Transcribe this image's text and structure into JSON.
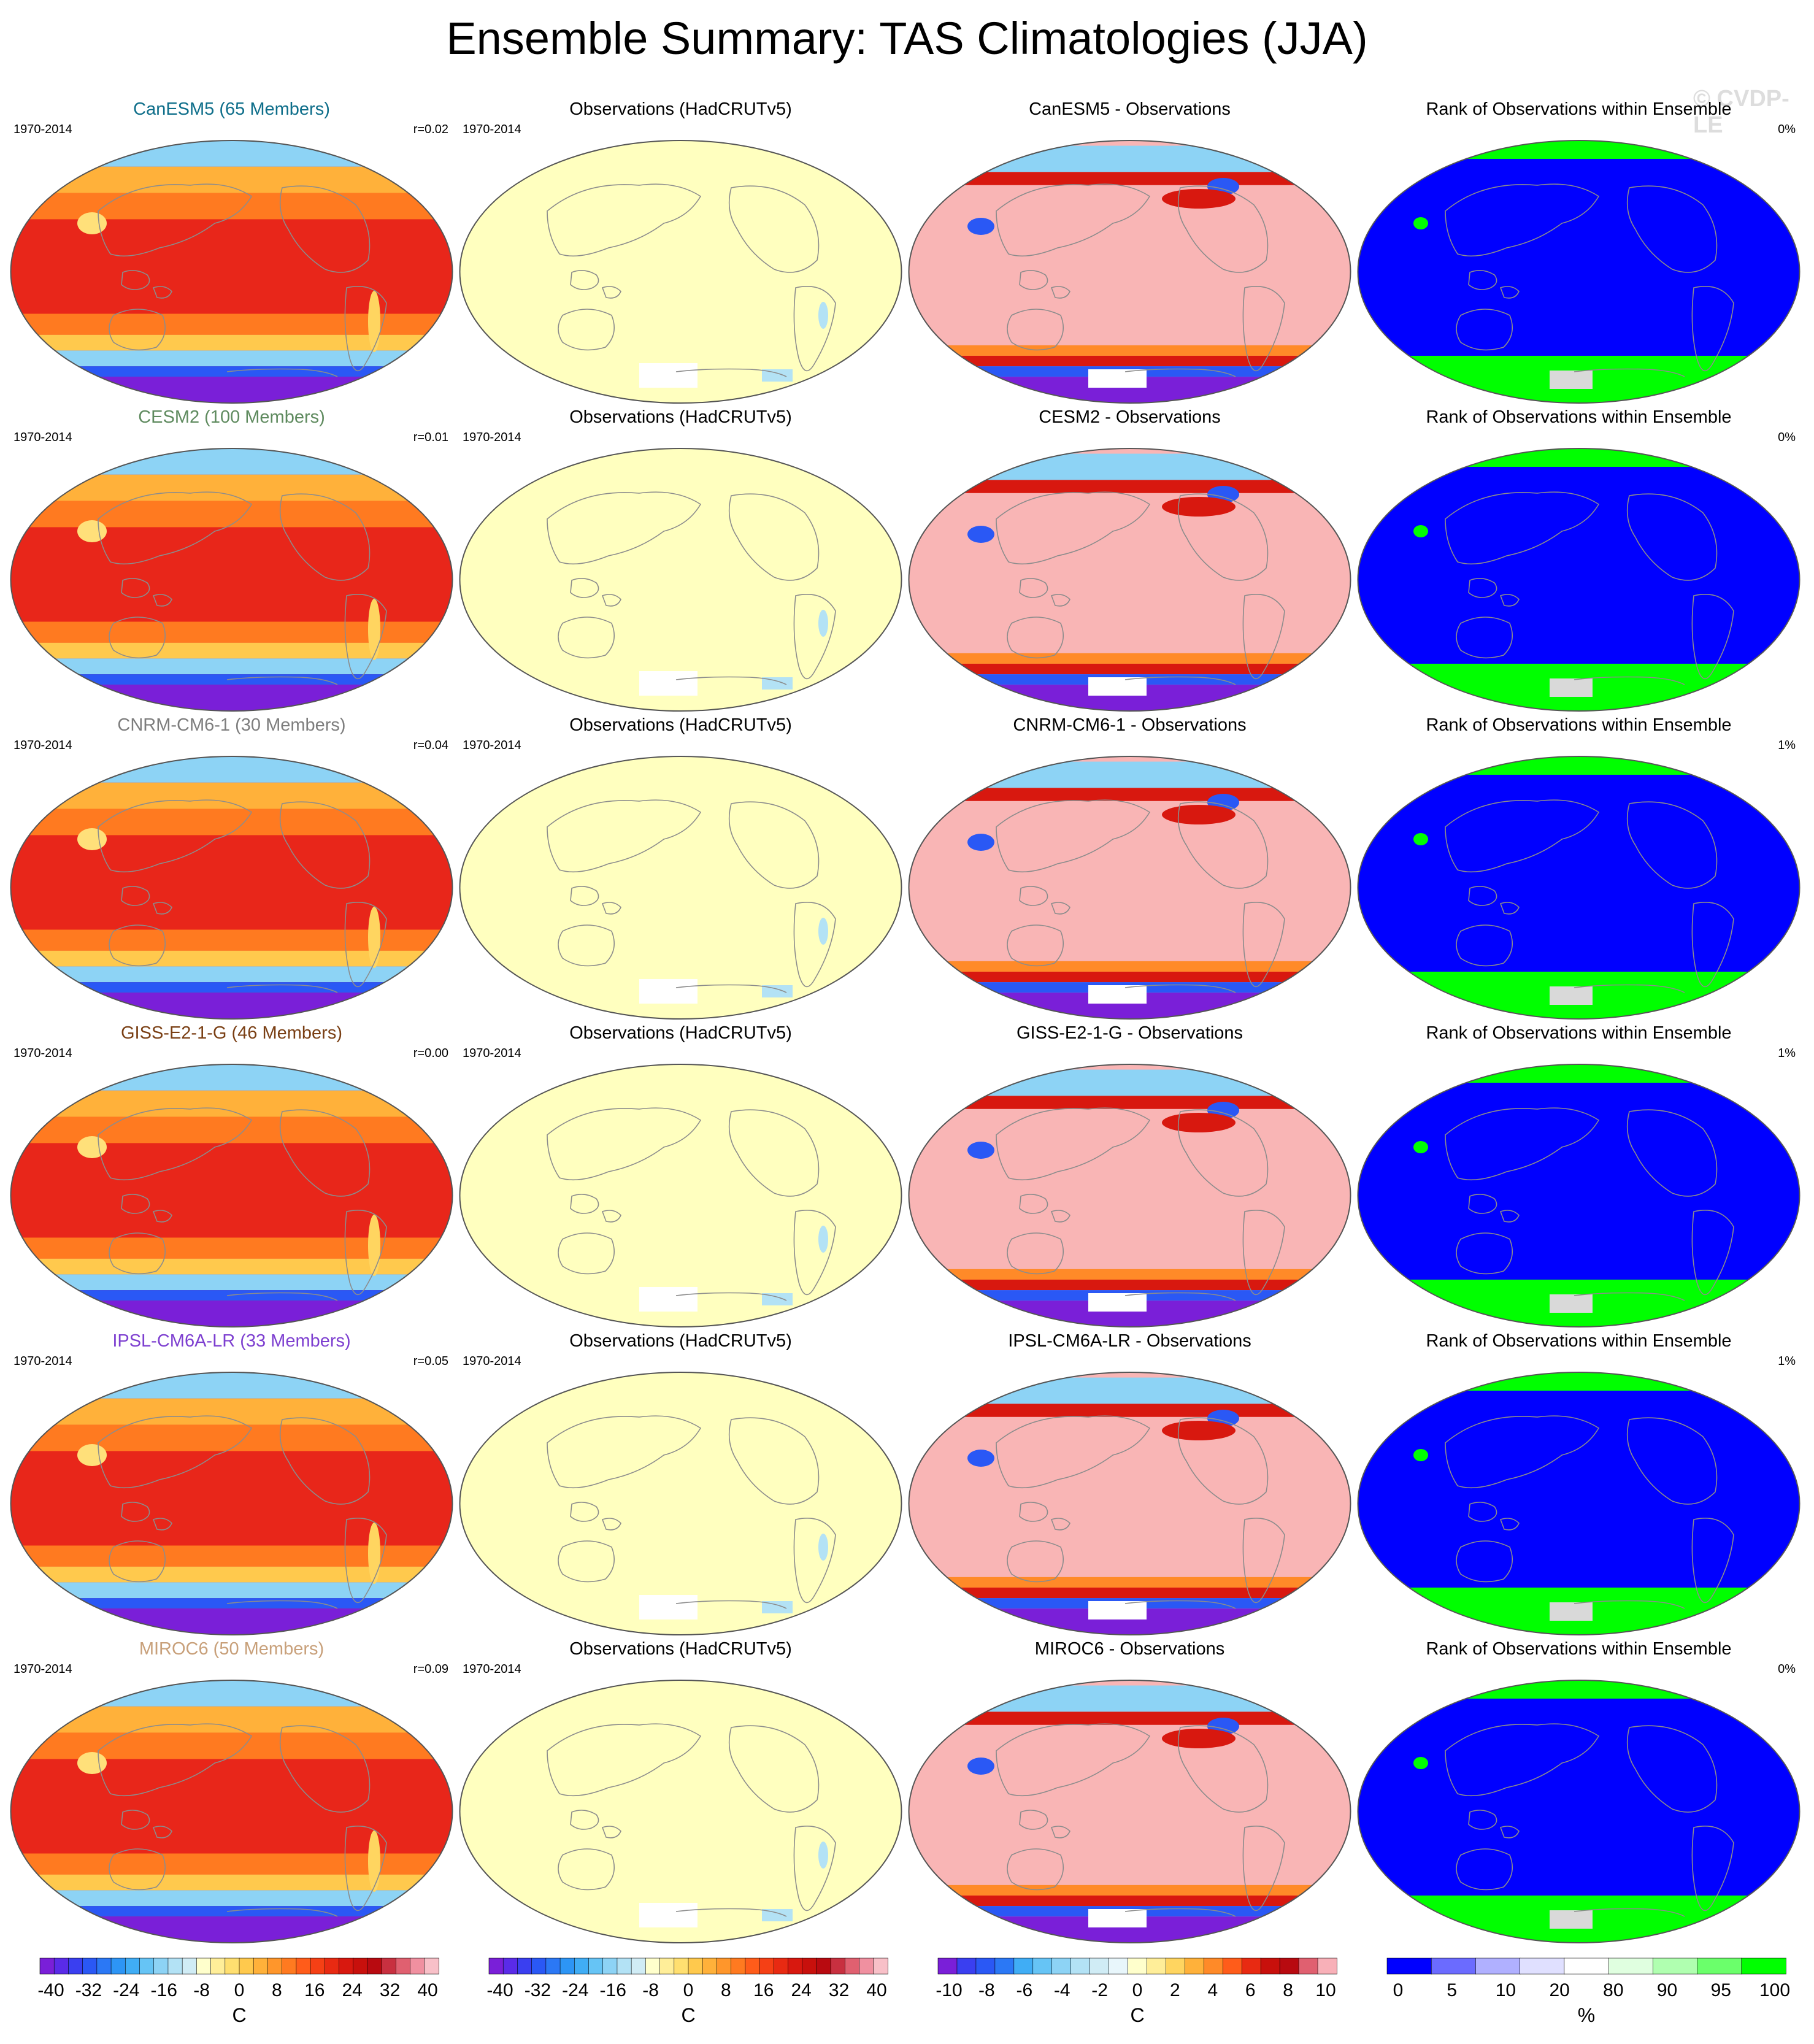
{
  "title": "Ensemble Summary: TAS Climatologies (JJA)",
  "watermark": "© CVDP-LE",
  "period": "1970-2014",
  "rows": [
    {
      "model_title": "CanESM5 (65 Members)",
      "model_color": "#0e6e8a",
      "r": "r=0.02",
      "obs_title": "Observations (HadCRUTv5)",
      "diff_title": "CanESM5 - Observations",
      "rank_title": "Rank of Observations within Ensemble",
      "rank_pct": "0%"
    },
    {
      "model_title": "CESM2 (100 Members)",
      "model_color": "#5e8a5e",
      "r": "r=0.01",
      "obs_title": "Observations (HadCRUTv5)",
      "diff_title": "CESM2 - Observations",
      "rank_title": "Rank of Observations within Ensemble",
      "rank_pct": "0%"
    },
    {
      "model_title": "CNRM-CM6-1 (30 Members)",
      "model_color": "#7d7d7d",
      "r": "r=0.04",
      "obs_title": "Observations (HadCRUTv5)",
      "diff_title": "CNRM-CM6-1 - Observations",
      "rank_title": "Rank of Observations within Ensemble",
      "rank_pct": "1%"
    },
    {
      "model_title": "GISS-E2-1-G (46 Members)",
      "model_color": "#7a3f14",
      "r": "r=0.00",
      "obs_title": "Observations (HadCRUTv5)",
      "diff_title": "GISS-E2-1-G - Observations",
      "rank_title": "Rank of Observations within Ensemble",
      "rank_pct": "1%"
    },
    {
      "model_title": "IPSL-CM6A-LR (33 Members)",
      "model_color": "#7d3fd0",
      "r": "r=0.05",
      "obs_title": "Observations (HadCRUTv5)",
      "diff_title": "IPSL-CM6A-LR - Observations",
      "rank_title": "Rank of Observations within Ensemble",
      "rank_pct": "1%"
    },
    {
      "model_title": "MIROC6 (50 Members)",
      "model_color": "#c8a07a",
      "r": "r=0.09",
      "obs_title": "Observations (HadCRUTv5)",
      "diff_title": "MIROC6 - Observations",
      "rank_title": "Rank of Observations within Ensemble",
      "rank_pct": "0%"
    }
  ],
  "colorbars": [
    {
      "id": "tas",
      "labels": [
        "-40",
        "-32",
        "-24",
        "-16",
        "-8",
        "0",
        "8",
        "16",
        "24",
        "32",
        "40"
      ],
      "unit": "C",
      "colors": [
        "#7a1fd8",
        "#5a2be8",
        "#3a3ff0",
        "#2a58f5",
        "#2b78f5",
        "#2d95f5",
        "#40adf5",
        "#66c4f5",
        "#8dd3f5",
        "#b3e2f5",
        "#d0ecf5",
        "#ffffcc",
        "#ffee99",
        "#ffdf70",
        "#ffc94d",
        "#ffb13a",
        "#ff962b",
        "#ff7a20",
        "#ff5c1a",
        "#f54015",
        "#e82a12",
        "#d8180f",
        "#c8100c",
        "#b80a10",
        "#c83040",
        "#e06070",
        "#f090a0",
        "#f8c0c8"
      ]
    },
    {
      "id": "tas-obs",
      "labels": [
        "-40",
        "-32",
        "-24",
        "-16",
        "-8",
        "0",
        "8",
        "16",
        "24",
        "32",
        "40"
      ],
      "unit": "C",
      "colors": [
        "#7a1fd8",
        "#5a2be8",
        "#3a3ff0",
        "#2a58f5",
        "#2b78f5",
        "#2d95f5",
        "#40adf5",
        "#66c4f5",
        "#8dd3f5",
        "#b3e2f5",
        "#d0ecf5",
        "#ffffcc",
        "#ffee99",
        "#ffdf70",
        "#ffc94d",
        "#ffb13a",
        "#ff962b",
        "#ff7a20",
        "#ff5c1a",
        "#f54015",
        "#e82a12",
        "#d8180f",
        "#c8100c",
        "#b80a10",
        "#c83040",
        "#e06070",
        "#f090a0",
        "#f8c0c8"
      ]
    },
    {
      "id": "diff",
      "labels": [
        "-10",
        "-8",
        "-6",
        "-4",
        "-2",
        "0",
        "2",
        "4",
        "6",
        "8",
        "10"
      ],
      "unit": "C",
      "colors": [
        "#7a1fd8",
        "#3a3ff0",
        "#2a58f5",
        "#2b78f5",
        "#40adf5",
        "#66c4f5",
        "#8dd3f5",
        "#b3e2f5",
        "#d0ecf5",
        "#e8f6fb",
        "#ffffcc",
        "#ffee99",
        "#ffd560",
        "#ffb13a",
        "#ff8a28",
        "#ff5c1a",
        "#e82a12",
        "#c8100c",
        "#b80a10",
        "#e06070",
        "#f8b0b8"
      ]
    },
    {
      "id": "rank",
      "labels": [
        "0",
        "5",
        "10",
        "20",
        "80",
        "90",
        "95",
        "100"
      ],
      "unit": "%",
      "colors": [
        "#0000ff",
        "#6b6bff",
        "#b0b0ff",
        "#e0e0ff",
        "#ffffff",
        "#e0ffe0",
        "#b0ffb0",
        "#6bff6b",
        "#00ff00"
      ]
    }
  ],
  "map_colors": {
    "model_tropics": "#e8261a",
    "model_midlat": "#ff7a20",
    "model_polar": "#7a1fd8",
    "model_cold": "#8dd3f5",
    "obs_fill": "#ffffbf",
    "obs_cold": "#b3e2f5",
    "diff_fill": "#f9b5b5",
    "diff_warm": "#d8180f",
    "diff_cold": "#2a58f5",
    "diff_polar": "#7a1fd8",
    "rank_fill": "#0000ff",
    "rank_green": "#00ff00",
    "missing": "#ffffff",
    "coast": "#8c8c8c",
    "missing_gray": "#d9d9d9"
  }
}
